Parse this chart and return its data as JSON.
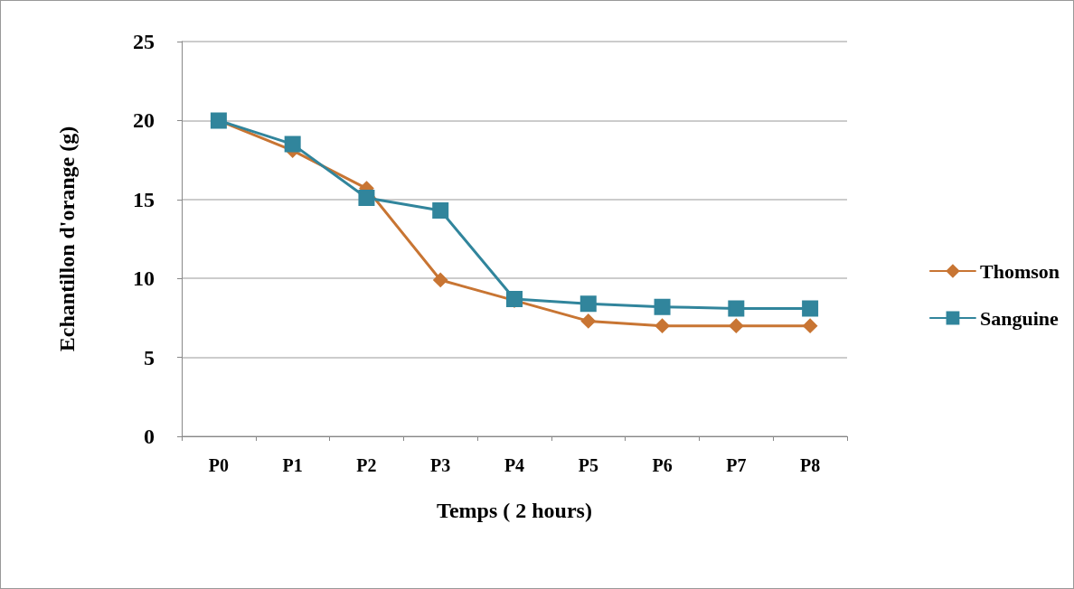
{
  "chart_data": {
    "type": "line",
    "xlabel": "Temps ( 2 hours)",
    "ylabel": "Echantillon d'orange (g)",
    "categories": [
      "P0",
      "P1",
      "P2",
      "P3",
      "P4",
      "P5",
      "P6",
      "P7",
      "P8"
    ],
    "series": [
      {
        "name": "Thomson",
        "color": "#c87533",
        "marker": "diamond",
        "values": [
          20,
          18.1,
          15.7,
          9.9,
          8.6,
          7.3,
          7.0,
          7.0,
          7.0
        ]
      },
      {
        "name": "Sanguine",
        "color": "#31859c",
        "marker": "square",
        "values": [
          20,
          18.5,
          15.1,
          14.3,
          8.7,
          8.4,
          8.2,
          8.1,
          8.1
        ]
      }
    ],
    "ylim": [
      0,
      25
    ],
    "yticks": [
      0,
      5,
      10,
      15,
      20,
      25
    ],
    "grid": "y",
    "legend": "right"
  }
}
